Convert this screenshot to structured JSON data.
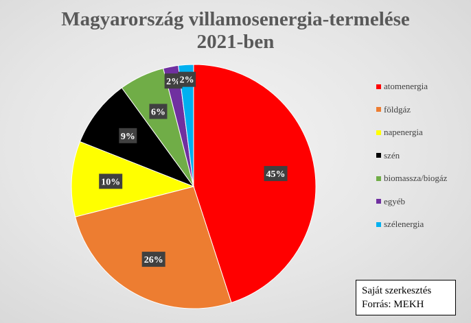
{
  "chart_data": {
    "type": "pie",
    "title": "Magyarország villamosenergia-termelése 2021-ben",
    "title_lines": [
      "Magyarország villamosenergia-termelése",
      "2021-ben"
    ],
    "categories": [
      "atomenergia",
      "földgáz",
      "napenergia",
      "szén",
      "biomassza/biogáz",
      "egyéb",
      "szélenergia"
    ],
    "values": [
      45,
      26,
      10,
      9,
      6,
      2,
      2
    ],
    "value_labels": [
      "45%",
      "26%",
      "10%",
      "9%",
      "6%",
      "2%",
      "2%"
    ],
    "colors": [
      "#ff0000",
      "#ed7d31",
      "#ffff00",
      "#000000",
      "#70ad47",
      "#7030a0",
      "#00b0f0"
    ],
    "legend_position": "right"
  },
  "note": {
    "line1": "Saját szerkesztés",
    "line2": "Forrás: MEKH"
  }
}
